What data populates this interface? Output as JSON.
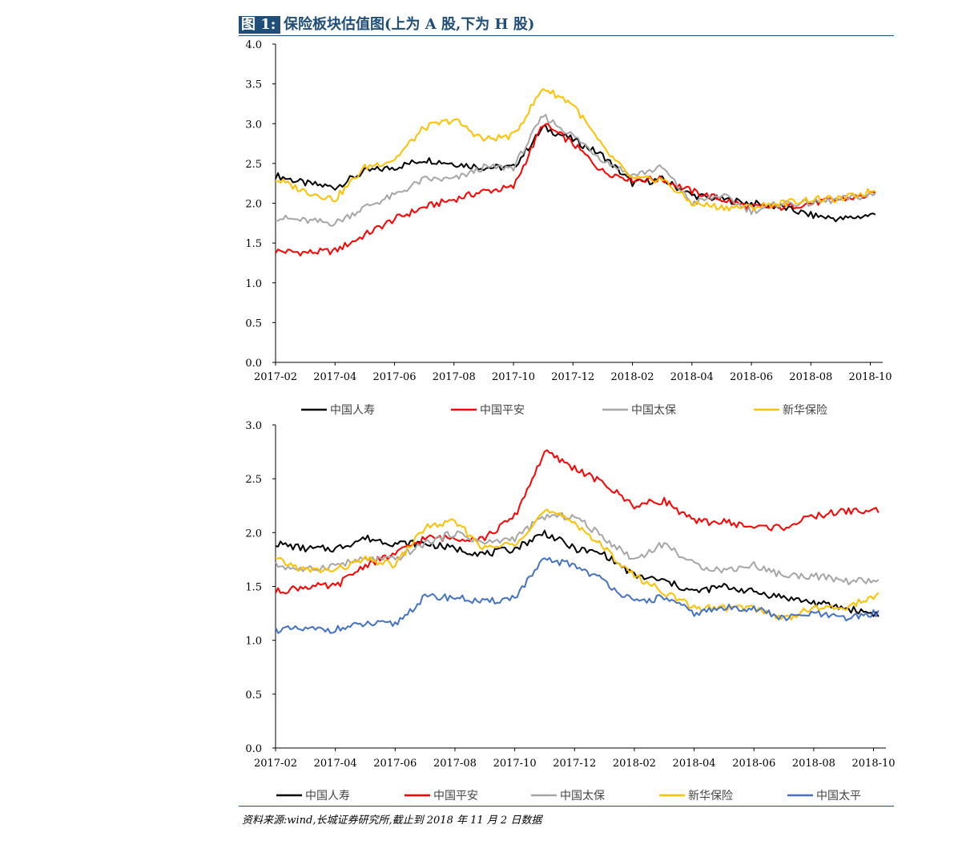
{
  "figure": {
    "label": "图 1:",
    "title": "保险板块估值图(上为 A 股,下为 H 股)",
    "source": "资料来源:wind,长城证券研究所,截止到 2018 年 11 月 2 日数据"
  },
  "colors": {
    "中国人寿": "#000000",
    "中国平安": "#ff0000",
    "中国太保": "#a6a6a6",
    "新华保险": "#ffc000",
    "中国太平": "#4472c4"
  },
  "chart_data": [
    {
      "id": "a-share",
      "type": "line",
      "title": "",
      "x_ticks": [
        "2017-02",
        "2017-04",
        "2017-06",
        "2017-08",
        "2017-10",
        "2017-12",
        "2018-02",
        "2018-04",
        "2018-06",
        "2018-08",
        "2018-10"
      ],
      "ylim": [
        0,
        4.0
      ],
      "y_ticks": [
        "0.0",
        "0.5",
        "1.0",
        "1.5",
        "2.0",
        "2.5",
        "3.0",
        "3.5",
        "4.0"
      ],
      "legend_position": "bottom",
      "grid": false,
      "series": [
        {
          "name": "中国人寿",
          "x": [
            "2017-02",
            "2017-03",
            "2017-04",
            "2017-05",
            "2017-06",
            "2017-07",
            "2017-08",
            "2017-09",
            "2017-10",
            "2017-11",
            "2017-12",
            "2018-01",
            "2018-02",
            "2018-03",
            "2018-04",
            "2018-05",
            "2018-06",
            "2018-07",
            "2018-08",
            "2018-09",
            "2018-10",
            "2018-11"
          ],
          "values": [
            2.35,
            2.25,
            2.2,
            2.4,
            2.45,
            2.55,
            2.5,
            2.45,
            2.45,
            2.95,
            2.8,
            2.6,
            2.25,
            2.3,
            2.1,
            2.05,
            2.0,
            1.95,
            1.85,
            1.8,
            1.85,
            1.9
          ]
        },
        {
          "name": "中国平安",
          "x": [
            "2017-02",
            "2017-03",
            "2017-04",
            "2017-05",
            "2017-06",
            "2017-07",
            "2017-08",
            "2017-09",
            "2017-10",
            "2017-11",
            "2017-12",
            "2018-01",
            "2018-02",
            "2018-03",
            "2018-04",
            "2018-05",
            "2018-06",
            "2018-07",
            "2018-08",
            "2018-09",
            "2018-10",
            "2018-11"
          ],
          "values": [
            1.4,
            1.38,
            1.4,
            1.6,
            1.8,
            1.95,
            2.05,
            2.15,
            2.2,
            3.0,
            2.75,
            2.4,
            2.3,
            2.3,
            2.15,
            2.05,
            1.95,
            1.95,
            2.0,
            2.05,
            2.1,
            2.15
          ]
        },
        {
          "name": "中国太保",
          "x": [
            "2017-02",
            "2017-03",
            "2017-04",
            "2017-05",
            "2017-06",
            "2017-07",
            "2017-08",
            "2017-09",
            "2017-10",
            "2017-11",
            "2017-12",
            "2018-01",
            "2018-02",
            "2018-03",
            "2018-04",
            "2018-05",
            "2018-06",
            "2018-07",
            "2018-08",
            "2018-09",
            "2018-10",
            "2018-11"
          ],
          "values": [
            1.82,
            1.78,
            1.75,
            1.95,
            2.1,
            2.3,
            2.3,
            2.45,
            2.45,
            3.1,
            2.85,
            2.55,
            2.35,
            2.45,
            2.0,
            2.1,
            1.9,
            2.0,
            2.0,
            2.05,
            2.1,
            2.15
          ]
        },
        {
          "name": "新华保险",
          "x": [
            "2017-02",
            "2017-03",
            "2017-04",
            "2017-05",
            "2017-06",
            "2017-07",
            "2017-08",
            "2017-09",
            "2017-10",
            "2017-11",
            "2017-12",
            "2018-01",
            "2018-02",
            "2018-03",
            "2018-04",
            "2018-05",
            "2018-06",
            "2018-07",
            "2018-08",
            "2018-09",
            "2018-10",
            "2018-11"
          ],
          "values": [
            2.3,
            2.15,
            2.05,
            2.45,
            2.55,
            2.95,
            3.05,
            2.8,
            2.85,
            3.45,
            3.25,
            2.7,
            2.3,
            2.3,
            2.0,
            1.95,
            1.95,
            2.0,
            2.05,
            2.05,
            2.15,
            2.2
          ]
        }
      ]
    },
    {
      "id": "h-share",
      "type": "line",
      "title": "",
      "x_ticks": [
        "2017-02",
        "2017-04",
        "2017-06",
        "2017-08",
        "2017-10",
        "2017-12",
        "2018-02",
        "2018-04",
        "2018-06",
        "2018-08",
        "2018-10"
      ],
      "ylim": [
        0,
        3.0
      ],
      "y_ticks": [
        "0.0",
        "0.5",
        "1.0",
        "1.5",
        "2.0",
        "2.5",
        "3.0"
      ],
      "legend_position": "bottom",
      "grid": false,
      "series": [
        {
          "name": "中国人寿",
          "x": [
            "2017-02",
            "2017-03",
            "2017-04",
            "2017-05",
            "2017-06",
            "2017-07",
            "2017-08",
            "2017-09",
            "2017-10",
            "2017-11",
            "2017-12",
            "2018-01",
            "2018-02",
            "2018-03",
            "2018-04",
            "2018-05",
            "2018-06",
            "2018-07",
            "2018-08",
            "2018-09",
            "2018-10",
            "2018-11"
          ],
          "values": [
            1.9,
            1.85,
            1.85,
            1.95,
            1.9,
            1.9,
            1.85,
            1.8,
            1.85,
            2.0,
            1.85,
            1.8,
            1.6,
            1.55,
            1.45,
            1.5,
            1.45,
            1.4,
            1.35,
            1.3,
            1.25,
            1.2
          ]
        },
        {
          "name": "中国平安",
          "x": [
            "2017-02",
            "2017-03",
            "2017-04",
            "2017-05",
            "2017-06",
            "2017-07",
            "2017-08",
            "2017-09",
            "2017-10",
            "2017-11",
            "2017-12",
            "2018-01",
            "2018-02",
            "2018-03",
            "2018-04",
            "2018-05",
            "2018-06",
            "2018-07",
            "2018-08",
            "2018-09",
            "2018-10",
            "2018-11"
          ],
          "values": [
            1.45,
            1.5,
            1.5,
            1.7,
            1.8,
            1.95,
            1.95,
            1.95,
            2.15,
            2.75,
            2.6,
            2.45,
            2.25,
            2.3,
            2.1,
            2.1,
            2.05,
            2.05,
            2.15,
            2.2,
            2.2,
            2.25
          ]
        },
        {
          "name": "中国太保",
          "x": [
            "2017-02",
            "2017-03",
            "2017-04",
            "2017-05",
            "2017-06",
            "2017-07",
            "2017-08",
            "2017-09",
            "2017-10",
            "2017-11",
            "2017-12",
            "2018-01",
            "2018-02",
            "2018-03",
            "2018-04",
            "2018-05",
            "2018-06",
            "2018-07",
            "2018-08",
            "2018-09",
            "2018-10",
            "2018-11"
          ],
          "values": [
            1.7,
            1.65,
            1.7,
            1.75,
            1.75,
            1.9,
            2.0,
            1.9,
            1.95,
            2.15,
            2.15,
            1.95,
            1.75,
            1.9,
            1.7,
            1.65,
            1.7,
            1.6,
            1.6,
            1.55,
            1.55,
            1.65
          ]
        },
        {
          "name": "新华保险",
          "x": [
            "2017-02",
            "2017-03",
            "2017-04",
            "2017-05",
            "2017-06",
            "2017-07",
            "2017-08",
            "2017-09",
            "2017-10",
            "2017-11",
            "2017-12",
            "2018-01",
            "2018-02",
            "2018-03",
            "2018-04",
            "2018-05",
            "2018-06",
            "2018-07",
            "2018-08",
            "2018-09",
            "2018-10",
            "2018-11"
          ],
          "values": [
            1.75,
            1.65,
            1.65,
            1.75,
            1.7,
            2.05,
            2.1,
            1.85,
            1.9,
            2.2,
            2.1,
            1.85,
            1.6,
            1.45,
            1.3,
            1.3,
            1.3,
            1.2,
            1.3,
            1.3,
            1.4,
            1.5
          ]
        },
        {
          "name": "中国太平",
          "x": [
            "2017-02",
            "2017-03",
            "2017-04",
            "2017-05",
            "2017-06",
            "2017-07",
            "2017-08",
            "2017-09",
            "2017-10",
            "2017-11",
            "2017-12",
            "2018-01",
            "2018-02",
            "2018-03",
            "2018-04",
            "2018-05",
            "2018-06",
            "2018-07",
            "2018-08",
            "2018-09",
            "2018-10",
            "2018-11"
          ],
          "values": [
            1.1,
            1.1,
            1.1,
            1.15,
            1.15,
            1.4,
            1.4,
            1.35,
            1.4,
            1.75,
            1.7,
            1.55,
            1.35,
            1.4,
            1.25,
            1.3,
            1.3,
            1.2,
            1.25,
            1.2,
            1.25,
            1.3
          ]
        }
      ]
    }
  ]
}
